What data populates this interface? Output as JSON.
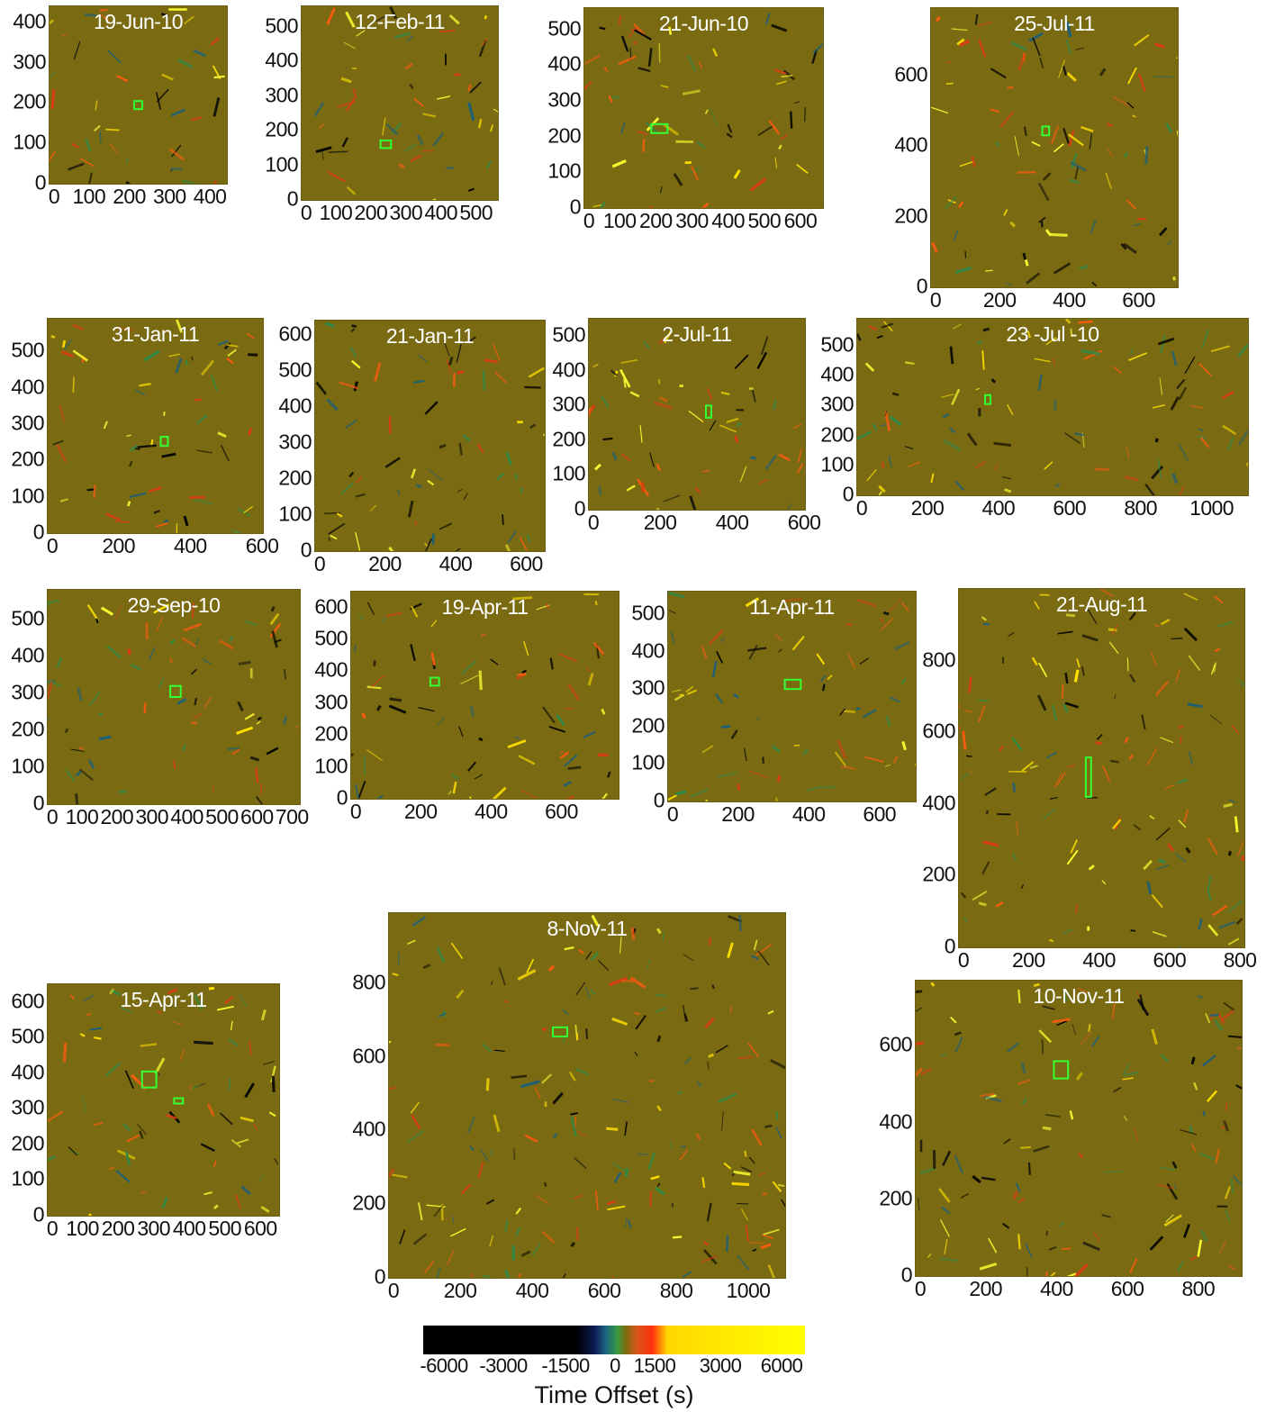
{
  "chart_data": [
    {
      "type": "heatmap",
      "title": "19-Jun-10",
      "x_ticks": [
        "0",
        "100",
        "200",
        "300",
        "400"
      ],
      "y_ticks": [
        "0",
        "100",
        "200",
        "300",
        "400"
      ],
      "xlim": [
        0,
        440
      ],
      "ylim": [
        0,
        440
      ],
      "box": {
        "x": [
          210,
          230
        ],
        "y": [
          185,
          205
        ]
      }
    },
    {
      "type": "heatmap",
      "title": "12-Feb-11",
      "x_ticks": [
        "0",
        "100",
        "200",
        "300",
        "400",
        "500"
      ],
      "y_ticks": [
        "0",
        "100",
        "200",
        "300",
        "400",
        "500"
      ],
      "xlim": [
        0,
        560
      ],
      "ylim": [
        0,
        560
      ],
      "box": {
        "x": [
          225,
          255
        ],
        "y": [
          150,
          172
        ]
      }
    },
    {
      "type": "heatmap",
      "title": "21-Jun-10",
      "x_ticks": [
        "0",
        "100",
        "200",
        "300",
        "400",
        "500",
        "600"
      ],
      "y_ticks": [
        "0",
        "100",
        "200",
        "300",
        "400",
        "500"
      ],
      "xlim": [
        0,
        660
      ],
      "ylim": [
        0,
        560
      ],
      "box": {
        "x": [
          185,
          230
        ],
        "y": [
          210,
          235
        ]
      }
    },
    {
      "type": "heatmap",
      "title": "25-Jul-11",
      "x_ticks": [
        "0",
        "200",
        "400",
        "600"
      ],
      "y_ticks": [
        "0",
        "200",
        "400",
        "600"
      ],
      "xlim": [
        0,
        710
      ],
      "ylim": [
        0,
        790
      ],
      "box": {
        "x": [
          320,
          340
        ],
        "y": [
          430,
          455
        ]
      }
    },
    {
      "type": "heatmap",
      "title": "31-Jan-11",
      "x_ticks": [
        "0",
        "200",
        "400",
        "600"
      ],
      "y_ticks": [
        "0",
        "100",
        "200",
        "300",
        "400",
        "500"
      ],
      "xlim": [
        0,
        600
      ],
      "ylim": [
        0,
        590
      ],
      "box": {
        "x": [
          315,
          335
        ],
        "y": [
          240,
          265
        ]
      }
    },
    {
      "type": "heatmap",
      "title": "21-Jan-11",
      "x_ticks": [
        "0",
        "200",
        "400",
        "600"
      ],
      "y_ticks": [
        "0",
        "100",
        "200",
        "300",
        "400",
        "500",
        "600"
      ],
      "xlim": [
        0,
        650
      ],
      "ylim": [
        0,
        640
      ],
      "box": null
    },
    {
      "type": "heatmap",
      "title": "2-Jul-11",
      "x_ticks": [
        "0",
        "200",
        "400",
        "600"
      ],
      "y_ticks": [
        "0",
        "100",
        "200",
        "300",
        "400",
        "500"
      ],
      "xlim": [
        0,
        600
      ],
      "ylim": [
        0,
        550
      ],
      "box": {
        "x": [
          325,
          340
        ],
        "y": [
          265,
          300
        ]
      }
    },
    {
      "type": "heatmap",
      "title": "23 -Jul -10",
      "x_ticks": [
        "0",
        "200",
        "400",
        "600",
        "800",
        "1000"
      ],
      "y_ticks": [
        "0",
        "100",
        "200",
        "300",
        "400",
        "500"
      ],
      "xlim": [
        0,
        1100
      ],
      "ylim": [
        0,
        590
      ],
      "box": {
        "x": [
          360,
          375
        ],
        "y": [
          305,
          335
        ]
      }
    },
    {
      "type": "heatmap",
      "title": "29-Sep-10",
      "x_ticks": [
        "0",
        "100",
        "200",
        "300",
        "400",
        "500",
        "600",
        "700"
      ],
      "y_ticks": [
        "0",
        "100",
        "200",
        "300",
        "400",
        "500"
      ],
      "xlim": [
        0,
        720
      ],
      "ylim": [
        0,
        580
      ],
      "box": {
        "x": [
          350,
          380
        ],
        "y": [
          290,
          320
        ]
      }
    },
    {
      "type": "heatmap",
      "title": "19-Apr-11",
      "x_ticks": [
        "0",
        "200",
        "400",
        "600"
      ],
      "y_ticks": [
        "0",
        "100",
        "200",
        "300",
        "400",
        "500",
        "600"
      ],
      "xlim": [
        0,
        760
      ],
      "ylim": [
        0,
        650
      ],
      "box": {
        "x": [
          225,
          250
        ],
        "y": [
          355,
          380
        ]
      }
    },
    {
      "type": "heatmap",
      "title": "11-Apr-11",
      "x_ticks": [
        "0",
        "200",
        "400",
        "600"
      ],
      "y_ticks": [
        "0",
        "100",
        "200",
        "300",
        "400",
        "500"
      ],
      "xlim": [
        0,
        700
      ],
      "ylim": [
        0,
        560
      ],
      "box": {
        "x": [
          330,
          375
        ],
        "y": [
          300,
          325
        ]
      }
    },
    {
      "type": "heatmap",
      "title": "21-Aug-11",
      "x_ticks": [
        "0",
        "200",
        "400",
        "600",
        "800"
      ],
      "y_ticks": [
        "0",
        "200",
        "400",
        "600",
        "800"
      ],
      "xlim": [
        0,
        810
      ],
      "ylim": [
        0,
        1000
      ],
      "box": {
        "x": [
          360,
          375
        ],
        "y": [
          420,
          530
        ]
      }
    },
    {
      "type": "heatmap",
      "title": "15-Apr-11",
      "x_ticks": [
        "0",
        "100",
        "200",
        "300",
        "400",
        "500",
        "600"
      ],
      "y_ticks": [
        "0",
        "100",
        "200",
        "300",
        "400",
        "500",
        "600"
      ],
      "xlim": [
        0,
        650
      ],
      "ylim": [
        0,
        650
      ],
      "box": {
        "x": [
          265,
          305
        ],
        "y": [
          360,
          405
        ]
      },
      "box2": {
        "x": [
          355,
          380
        ],
        "y": [
          315,
          330
        ]
      }
    },
    {
      "type": "heatmap",
      "title": "8-Nov-11",
      "x_ticks": [
        "0",
        "200",
        "400",
        "600",
        "800",
        "1000"
      ],
      "y_ticks": [
        "0",
        "200",
        "400",
        "600",
        "800"
      ],
      "xlim": [
        0,
        1100
      ],
      "ylim": [
        0,
        990
      ],
      "box": {
        "x": [
          455,
          495
        ],
        "y": [
          655,
          680
        ]
      }
    },
    {
      "type": "heatmap",
      "title": "10-Nov-11",
      "x_ticks": [
        "0",
        "200",
        "400",
        "600",
        "800"
      ],
      "y_ticks": [
        "0",
        "200",
        "400",
        "600"
      ],
      "xlim": [
        0,
        920
      ],
      "ylim": [
        0,
        770
      ],
      "box": {
        "x": [
          390,
          430
        ],
        "y": [
          515,
          560
        ]
      }
    }
  ],
  "colorbar": {
    "label": "Time Offset (s)",
    "ticks": [
      "-6000",
      "-3000",
      "-1500",
      "0",
      "1500",
      "3000",
      "6000"
    ],
    "colors": [
      "#000000",
      "#0d1a55",
      "#1b6a82",
      "#3b9a3a",
      "#7a6b12",
      "#d8561a",
      "#ff3010",
      "#ffd800",
      "#ffff00"
    ]
  }
}
